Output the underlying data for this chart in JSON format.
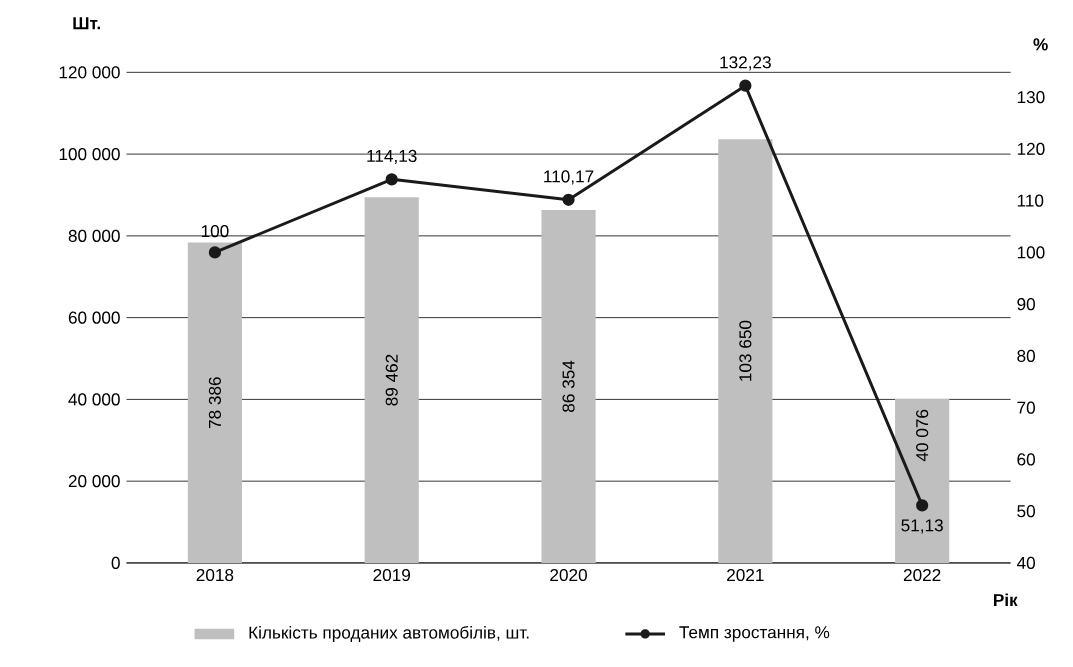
{
  "chart_data": {
    "type": "bar",
    "categories": [
      "2018",
      "2019",
      "2020",
      "2021",
      "2022"
    ],
    "series": [
      {
        "name": "Кількість проданих автомобілів, шт.",
        "color": "#bfbfbf",
        "values": [
          78386,
          89462,
          86354,
          103650,
          40076
        ],
        "value_labels": [
          "78 386",
          "89 462",
          "86 354",
          "103 650",
          "40 076"
        ]
      },
      {
        "name": "Темп зростання, %",
        "type": "line",
        "axis": "y2",
        "color": "#1a1a1a",
        "marker": "circle",
        "values": [
          100,
          114.13,
          110.17,
          132.23,
          51.13
        ],
        "value_labels": [
          "100",
          "114,13",
          "110,17",
          "132,23",
          "51,13"
        ]
      }
    ],
    "xlabel": "Рік",
    "ylabel": "Шт.",
    "y2label": "%",
    "ylim": [
      0,
      120000
    ],
    "yticks": [
      0,
      {
        "value": 20000,
        "label": "20 000"
      },
      {
        "value": 40000,
        "label": "40 000"
      },
      {
        "value": 60000,
        "label": "60 000"
      },
      {
        "value": 80000,
        "label": "80 000"
      },
      {
        "value": 100000,
        "label": "100 000"
      },
      {
        "value": 120000,
        "label": "120 000"
      }
    ],
    "y2lim": [
      40,
      134.8
    ],
    "y2ticks": [
      40,
      50,
      60,
      70,
      80,
      90,
      100,
      110,
      120,
      130
    ],
    "grid": "y",
    "legend": "bottom"
  }
}
